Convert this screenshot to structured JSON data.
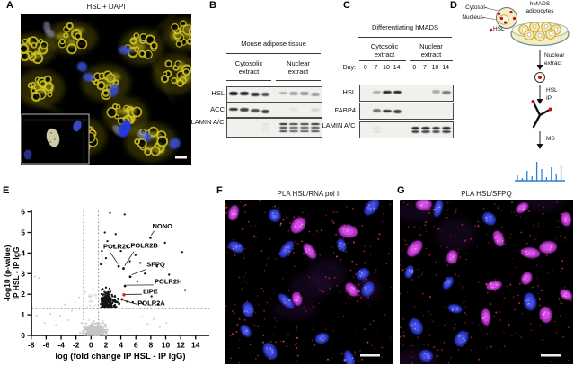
{
  "figure": {
    "panels": {
      "A": {
        "label": "A",
        "title": "HSL + DAPI"
      },
      "B": {
        "label": "B",
        "header": "Mouse adipose tissue",
        "groups": [
          "Cytosolic extract",
          "Nuclear extract"
        ],
        "rows": [
          {
            "label": "HSL",
            "sub_bands": 1,
            "lanes": [
              0.95,
              0.9,
              0.85,
              0.72,
              0.28,
              0.32,
              0.38,
              0.36
            ]
          },
          {
            "label": "ACC",
            "sub_bands": 1,
            "lanes": [
              0.85,
              0.78,
              0.72,
              0.82,
              0,
              0.06,
              0,
              0.1
            ]
          },
          {
            "label": "LAMIN A/C",
            "sub_bands": 3,
            "lanes": [
              0,
              0,
              0,
              0.07,
              0.95,
              0.8,
              0.82,
              0.88
            ]
          }
        ]
      },
      "C": {
        "label": "C",
        "header": "Differentiating hMADS",
        "groups": [
          "Cytosolic extract",
          "Nuclear extract"
        ],
        "day_label": "Day:",
        "days": [
          "0",
          "7",
          "10",
          "14",
          "0",
          "7",
          "10",
          "14"
        ],
        "rows": [
          {
            "label": "HSL",
            "sub_bands": 1,
            "lanes": [
              0,
              0.3,
              0.9,
              0.92,
              0,
              0,
              0.3,
              0.5
            ]
          },
          {
            "label": "FABP4",
            "sub_bands": 1,
            "lanes": [
              0,
              0.55,
              0.85,
              0.8,
              0,
              0,
              0,
              0
            ]
          },
          {
            "label": "LAMIN A/C",
            "sub_bands": 2,
            "lanes": [
              0,
              0.08,
              0,
              0,
              0.92,
              0.9,
              0.85,
              0.9
            ]
          }
        ]
      },
      "D": {
        "label": "D",
        "cell_labels": {
          "cytosol": "Cytosol-",
          "nucleus": "Nucleus-",
          "hsl": "HSL"
        },
        "dish_label": "hMADS adipocytes",
        "steps": [
          "Nuclear extract",
          "HSL IP",
          "MS"
        ],
        "spectrum_heights": [
          6,
          3,
          11,
          5,
          21,
          13,
          4,
          15,
          7,
          18
        ],
        "spectrum_color": "#2a7fd4"
      },
      "E": {
        "label": "E"
      },
      "F": {
        "label": "F",
        "title": "PLA HSL/RNA pol II"
      },
      "G": {
        "label": "G",
        "title": "PLA HSL/SFPQ"
      }
    },
    "microscopy_colors": {
      "hsl_yellow": "#cfc31f",
      "hsl_halo": "#8f860a",
      "dapi_blue": "#3b4fd8",
      "pla_blue": "#2f3bd8",
      "pla_magenta": "#c237d6",
      "pla_dot_red": "#d12f3e",
      "background": "#000000"
    }
  },
  "chart_data": {
    "type": "scatter",
    "xlabel": "log (fold change IP HSL - IP IgG)",
    "ylabel_lines": [
      "-log10 (p-value)",
      "IP HSL - IP IgG"
    ],
    "xlim": [
      -8,
      14
    ],
    "ylim": [
      0,
      6
    ],
    "xticks": [
      -8,
      -6,
      -4,
      -2,
      0,
      2,
      4,
      6,
      8,
      10,
      12,
      14
    ],
    "yticks": [
      0,
      1,
      2,
      3,
      4,
      5,
      6
    ],
    "threshold_x": [
      -1,
      1
    ],
    "threshold_y": 1.3,
    "colors": {
      "nonsignificant": "#c4c4c4",
      "significant": "#141414",
      "highlight": "#e02020"
    },
    "labeled_points": [
      {
        "name": "NONO",
        "x": 7.95,
        "y": 4.75,
        "label_x": 8.2,
        "label_y": 5.2,
        "line": [
          8.45,
          5.08,
          8.05,
          4.87
        ]
      },
      {
        "name": "POLR2C",
        "x": 3.7,
        "y": 3.35,
        "label_x": 1.65,
        "label_y": 4.22,
        "line": [
          2.55,
          4.05,
          3.6,
          3.47
        ]
      },
      {
        "name": "POLR2B",
        "x": 4.35,
        "y": 3.25,
        "label_x": 5.3,
        "label_y": 4.26,
        "line": [
          5.75,
          4.08,
          4.5,
          3.38
        ]
      },
      {
        "name": "SFPQ",
        "x": 5.25,
        "y": 2.85,
        "label_x": 7.45,
        "label_y": 3.34,
        "line": [
          7.3,
          3.2,
          5.45,
          2.95
        ]
      },
      {
        "name": "POLR2H",
        "x": 4.55,
        "y": 2.4,
        "label_x": 8.5,
        "label_y": 2.52,
        "line": [
          8.35,
          2.45,
          4.75,
          2.44
        ]
      },
      {
        "name": "LIPE",
        "x": 4.4,
        "y": 1.97,
        "label_x": 6.95,
        "label_y": 2.03,
        "color": "#e02020",
        "line": [
          6.8,
          2.0,
          4.6,
          1.99
        ]
      },
      {
        "name": "POLR2A",
        "x": 4.15,
        "y": 1.75,
        "label_x": 6.25,
        "label_y": 1.46,
        "line": [
          6.1,
          1.52,
          4.35,
          1.7
        ]
      }
    ],
    "significant_points_extra": [
      [
        2.55,
        5.95
      ],
      [
        4.5,
        5.88
      ],
      [
        1.85,
        5.0
      ],
      [
        3.3,
        4.92
      ],
      [
        2.2,
        4.58
      ],
      [
        4.85,
        4.3
      ],
      [
        9.9,
        4.5
      ],
      [
        12.2,
        4.05
      ],
      [
        8.85,
        3.35
      ],
      [
        10.45,
        2.95
      ],
      [
        12.6,
        2.2
      ],
      [
        7.2,
        3.0
      ],
      [
        6.6,
        3.52
      ],
      [
        5.95,
        3.9
      ],
      [
        6.2,
        2.62
      ],
      [
        7.3,
        2.2
      ],
      [
        8.1,
        1.9
      ],
      [
        5.6,
        1.62
      ],
      [
        6.9,
        1.55
      ],
      [
        9.0,
        1.5
      ],
      [
        3.1,
        4.35
      ],
      [
        1.45,
        4.1
      ],
      [
        2.0,
        3.75
      ],
      [
        1.3,
        3.45
      ],
      [
        5.2,
        3.6
      ],
      [
        4.0,
        4.1
      ]
    ],
    "nonsignificant_points_extra": [
      [
        -7.5,
        2.85
      ],
      [
        -6.95,
        2.78
      ],
      [
        -7.3,
        0.95
      ],
      [
        -6.2,
        0.6
      ],
      [
        -5.4,
        1.05
      ],
      [
        -4.7,
        0.5
      ],
      [
        -4.1,
        0.95
      ],
      [
        -3.5,
        1.5
      ],
      [
        -3.0,
        0.75
      ],
      [
        -2.55,
        1.2
      ],
      [
        -2.1,
        1.6
      ],
      [
        6.8,
        0.9
      ],
      [
        7.6,
        0.55
      ],
      [
        8.4,
        0.8
      ],
      [
        9.2,
        0.4
      ],
      [
        10.1,
        0.6
      ],
      [
        -1.6,
        1.85
      ],
      [
        -0.8,
        2.1
      ],
      [
        0.3,
        2.25
      ],
      [
        -0.2,
        1.9
      ]
    ]
  }
}
